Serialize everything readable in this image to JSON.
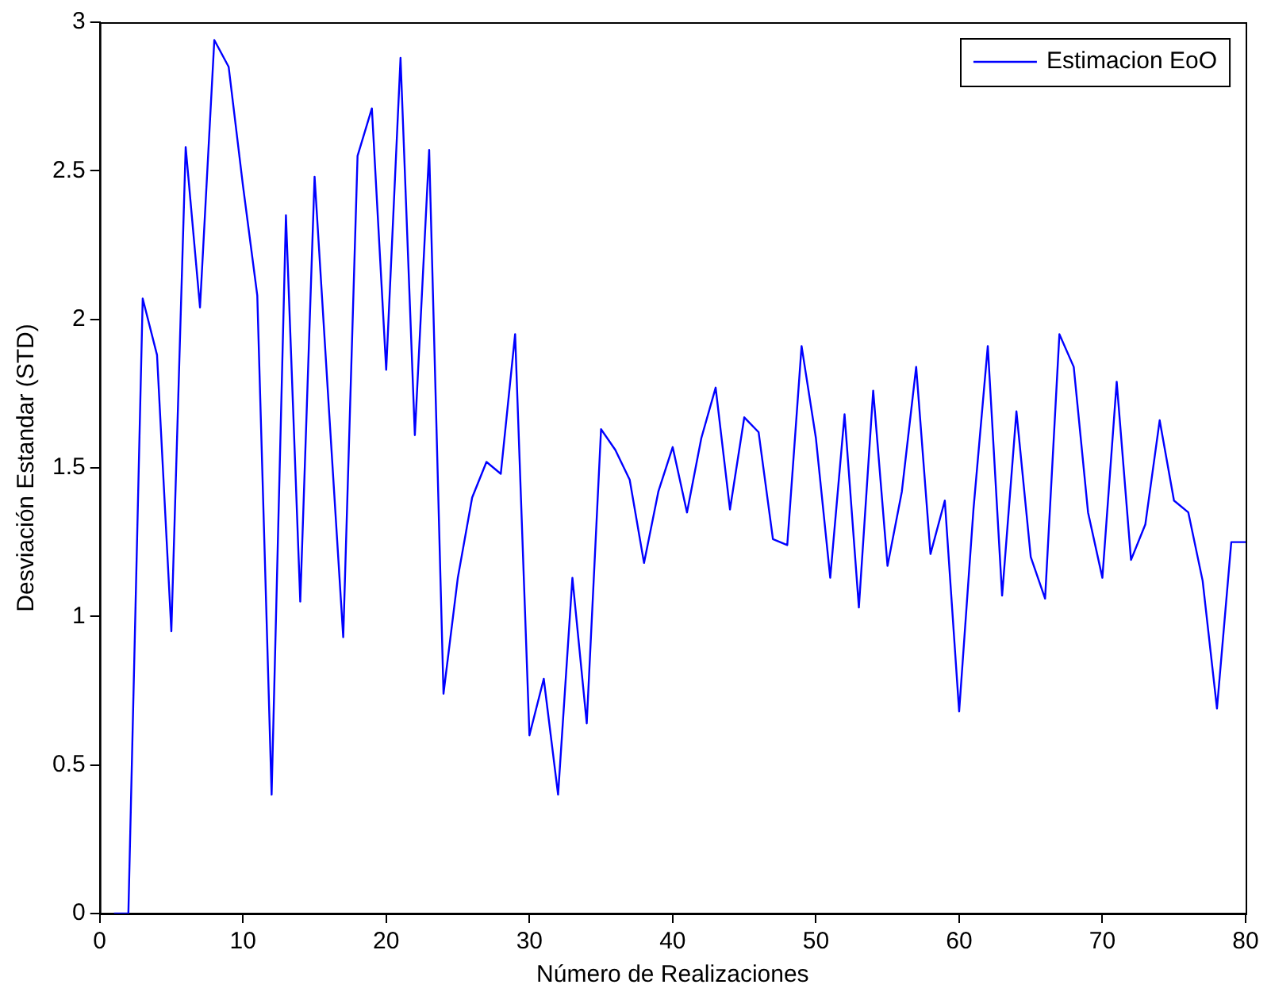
{
  "chart_data": {
    "type": "line",
    "xlabel": "Número de Realizaciones",
    "ylabel": "Desviación Estandar (STD)",
    "x": [
      1,
      2,
      3,
      4,
      5,
      6,
      7,
      8,
      9,
      10,
      11,
      12,
      13,
      14,
      15,
      16,
      17,
      18,
      19,
      20,
      21,
      22,
      23,
      24,
      25,
      26,
      27,
      28,
      29,
      30,
      31,
      32,
      33,
      34,
      35,
      36,
      37,
      38,
      39,
      40,
      41,
      42,
      43,
      44,
      45,
      46,
      47,
      48,
      49,
      50,
      51,
      52,
      53,
      54,
      55,
      56,
      57,
      58,
      59,
      60,
      61,
      62,
      63,
      64,
      65,
      66,
      67,
      68,
      69,
      70,
      71,
      72,
      73,
      74,
      75,
      76,
      77,
      78,
      79,
      80
    ],
    "series": [
      {
        "name": "Estimacion EoO",
        "color": "#0000ff",
        "values": [
          0,
          0,
          2.07,
          1.88,
          0.95,
          2.58,
          2.04,
          2.94,
          2.85,
          2.45,
          2.08,
          0.4,
          2.35,
          1.05,
          2.48,
          1.7,
          0.93,
          2.55,
          2.71,
          1.83,
          2.88,
          1.61,
          2.57,
          0.74,
          1.13,
          1.4,
          1.52,
          1.48,
          1.95,
          0.6,
          0.79,
          0.4,
          1.13,
          0.64,
          1.63,
          1.56,
          1.46,
          1.18,
          1.42,
          1.57,
          1.35,
          1.6,
          1.77,
          1.36,
          1.67,
          1.62,
          1.26,
          1.24,
          1.91,
          1.6,
          1.13,
          1.68,
          1.03,
          1.76,
          1.17,
          1.42,
          1.84,
          1.21,
          1.39,
          0.68,
          1.36,
          1.91,
          1.07,
          1.69,
          1.2,
          1.06,
          1.95,
          1.84,
          1.35,
          1.13,
          1.79,
          1.19,
          1.31,
          1.66,
          1.39,
          1.35,
          1.12,
          0.69,
          1.25,
          1.25
        ]
      }
    ],
    "xlim": [
      0,
      80
    ],
    "xticks": [
      0,
      10,
      20,
      30,
      40,
      50,
      60,
      70,
      80
    ],
    "ylim": [
      0,
      3
    ],
    "yticks": [
      0,
      0.5,
      1,
      1.5,
      2,
      2.5,
      3
    ],
    "grid": false,
    "legend": "top right",
    "marker": "none",
    "line_style": "solid"
  }
}
